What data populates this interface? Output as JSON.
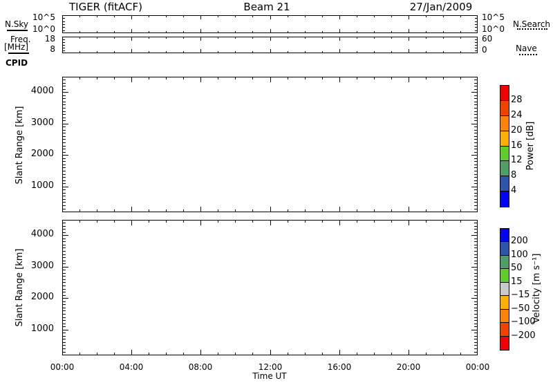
{
  "header": {
    "title_left": "TIGER (fitACF)",
    "title_center": "Beam 21",
    "title_right": "27/Jan/2009"
  },
  "top_panels": {
    "nsky": {
      "label": "N.Sky",
      "left_ticks": [
        "10^5",
        "10^0"
      ],
      "right_ticks": [
        "10^5",
        "10^0"
      ],
      "right_legend": "N.Search"
    },
    "freq": {
      "label_line1": "Freq.",
      "label_line2": "[MHz]",
      "left_ticks": [
        "18",
        "8"
      ],
      "right_ticks": [
        "60",
        "0"
      ],
      "right_legend": "Nave"
    },
    "cpid_label": "CPID"
  },
  "power_panel": {
    "ylabel": "Slant Range [km]",
    "yticks": [
      "4000",
      "3000",
      "2000",
      "1000"
    ]
  },
  "velocity_panel": {
    "ylabel": "Slant Range [km]",
    "yticks": [
      "4000",
      "3000",
      "2000",
      "1000"
    ]
  },
  "xaxis": {
    "tick_labels": [
      "00:00",
      "04:00",
      "08:00",
      "12:00",
      "16:00",
      "20:00",
      "00:00"
    ],
    "label": "Time UT"
  },
  "power_colorbar": {
    "title": "Power [dB]",
    "labels": [
      "28",
      "24",
      "20",
      "16",
      "12",
      "8",
      "4"
    ],
    "colors_top_to_bottom": [
      "#ee0202",
      "#ef4400",
      "#f9820a",
      "#fcae08",
      "#60cd2f",
      "#4f9e68",
      "#2d55a9",
      "#0404f0"
    ]
  },
  "velocity_colorbar": {
    "title": "Velocity [m s⁻¹]",
    "labels": [
      "200",
      "100",
      "50",
      "15",
      "−15",
      "−50",
      "−100",
      "−200"
    ],
    "colors_top_to_bottom": [
      "#0404f0",
      "#2d55a9",
      "#4f9e68",
      "#60cd2f",
      "#c9c9c9",
      "#fcae08",
      "#f9820a",
      "#ef4400",
      "#ee0202"
    ]
  },
  "chart_data": [
    {
      "type": "line",
      "panel": "sky-noise",
      "left_axis": {
        "label": "N.Sky",
        "scale": "log",
        "tick_labels": [
          "10^5",
          "10^0"
        ]
      },
      "right_axis": {
        "label": "N.Search",
        "tick_labels": [
          "10^5",
          "10^0"
        ],
        "line_style": "dotted"
      },
      "x_range_hours": [
        0,
        24
      ],
      "series": [],
      "note": "panel is empty - no data drawn"
    },
    {
      "type": "line",
      "panel": "frequency",
      "left_axis": {
        "label": "Freq. [MHz]",
        "tick_labels": [
          "18",
          "8"
        ],
        "line_style": "solid"
      },
      "right_axis": {
        "label": "Nave",
        "tick_labels": [
          "60",
          "0"
        ],
        "line_style": "dotted"
      },
      "x_range_hours": [
        0,
        24
      ],
      "series": [],
      "note": "panel is empty - no data drawn"
    },
    {
      "type": "heatmap",
      "panel": "power",
      "ylabel": "Slant Range [km]",
      "ylim": [
        180,
        4490
      ],
      "yticks": [
        1000,
        2000,
        3000,
        4000
      ],
      "x_range_hours": [
        0,
        24
      ],
      "colorbar_label": "Power [dB]",
      "colorbar_bounds": [
        4,
        8,
        12,
        16,
        20,
        24,
        28
      ],
      "values": [],
      "note": "panel is empty - no data drawn"
    },
    {
      "type": "heatmap",
      "panel": "velocity",
      "ylabel": "Slant Range [km]",
      "ylim": [
        180,
        4490
      ],
      "yticks": [
        1000,
        2000,
        3000,
        4000
      ],
      "x_range_hours": [
        0,
        24
      ],
      "colorbar_label": "Velocity [m s⁻¹]",
      "colorbar_bounds": [
        -200,
        -100,
        -50,
        -15,
        15,
        50,
        100,
        200
      ],
      "values": [],
      "note": "panel is empty - no data drawn"
    }
  ]
}
